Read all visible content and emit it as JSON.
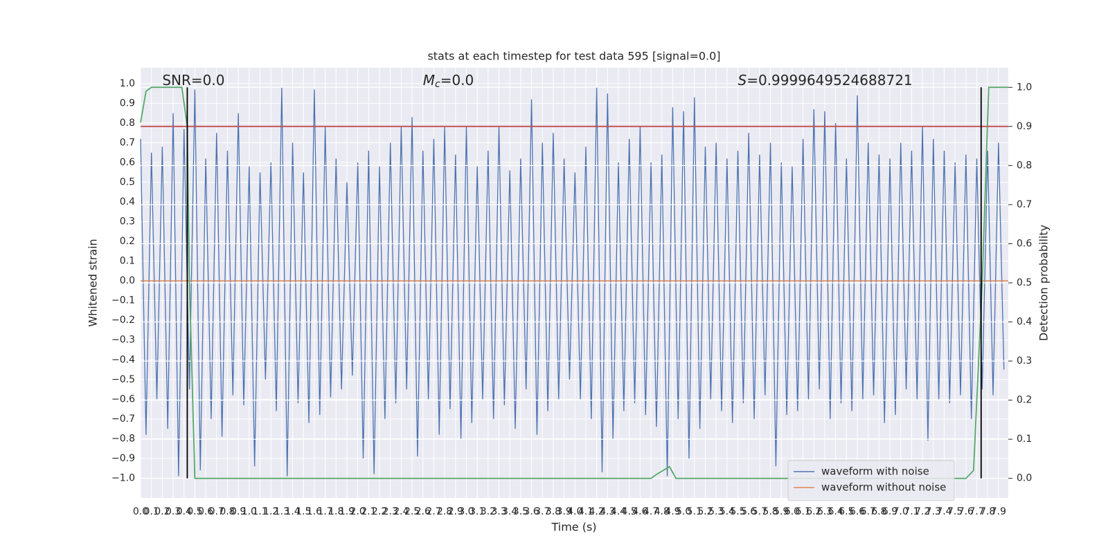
{
  "chart_data": {
    "type": "line",
    "title": "stats at each timestep for test data 595 [signal=0.0]",
    "xlabel": "Time (s)",
    "ylabel": "Whitened strain",
    "y2label": "Detection probability",
    "annotations": [
      {
        "text": "SNR=0.0",
        "x": 0.2
      },
      {
        "symbol": "M",
        "subscript": "c",
        "text": "=0.0",
        "x": 2.6
      },
      {
        "symbol": "S",
        "text": "=0.9999649524688721",
        "x": 5.5
      }
    ],
    "xlim": [
      0,
      7.99
    ],
    "ylim": [
      -1.1,
      1.08
    ],
    "y2lim": [
      -0.05,
      1.05
    ],
    "grid": true,
    "legend": "lower right",
    "xticks": [
      {
        "value": 0,
        "label": "0.0"
      },
      0.1,
      0.2,
      0.3,
      0.4,
      0.5,
      0.6,
      0.7,
      0.8,
      0.9,
      {
        "value": 1,
        "label": "1.0"
      },
      1.1,
      1.2,
      1.3,
      1.4,
      1.5,
      1.6,
      1.7,
      1.8,
      1.9,
      {
        "value": 2,
        "label": "2.0"
      },
      2.1,
      2.2,
      2.3,
      2.4,
      2.5,
      2.6,
      2.7,
      2.8,
      2.9,
      {
        "value": 3,
        "label": "3.0"
      },
      3.1,
      3.2,
      3.3,
      3.4,
      3.5,
      3.6,
      3.7,
      3.8,
      3.9,
      {
        "value": 4,
        "label": "4.0"
      },
      4.1,
      4.2,
      4.3,
      4.4,
      4.5,
      4.6,
      4.7,
      4.8,
      4.9,
      {
        "value": 5,
        "label": "5.0"
      },
      5.1,
      5.2,
      5.3,
      5.4,
      5.5,
      5.6,
      5.7,
      5.8,
      5.9,
      {
        "value": 6,
        "label": "6.0"
      },
      6.1,
      6.2,
      6.3,
      6.4,
      6.5,
      6.6,
      6.7,
      6.8,
      6.9,
      {
        "value": 7,
        "label": "7.0"
      },
      7.1,
      7.2,
      7.3,
      7.4,
      7.5,
      7.6,
      7.7,
      7.8,
      7.9
    ],
    "yticks": [
      {
        "value": -1,
        "label": "−1.0"
      },
      {
        "value": -0.9,
        "label": "−0.9"
      },
      {
        "value": -0.8,
        "label": "−0.8"
      },
      {
        "value": -0.7,
        "label": "−0.7"
      },
      {
        "value": -0.6,
        "label": "−0.6"
      },
      {
        "value": -0.5,
        "label": "−0.5"
      },
      {
        "value": -0.4,
        "label": "−0.4"
      },
      {
        "value": -0.3,
        "label": "−0.3"
      },
      {
        "value": -0.2,
        "label": "−0.2"
      },
      {
        "value": -0.1,
        "label": "−0.1"
      },
      {
        "value": 0,
        "label": "0.0"
      },
      0.1,
      0.2,
      0.3,
      0.4,
      0.5,
      0.6,
      0.7,
      0.8,
      0.9,
      {
        "value": 1,
        "label": "1.0"
      }
    ],
    "y2ticks": [
      {
        "value": 0,
        "label": "0.0"
      },
      0.1,
      0.2,
      0.3,
      0.4,
      0.5,
      0.6,
      0.7,
      0.8,
      0.9,
      {
        "value": 1,
        "label": "1.0"
      }
    ],
    "series": [
      {
        "name": "waveform with noise",
        "color": "#4c72b0",
        "x": [
          0,
          0.05,
          0.1,
          0.15,
          0.2,
          0.25,
          0.3,
          0.35,
          0.4,
          0.45,
          0.5,
          0.55,
          0.6,
          0.65,
          0.7,
          0.75,
          0.8,
          0.85,
          0.9,
          0.95,
          1,
          1.05,
          1.1,
          1.15,
          1.2,
          1.25,
          1.3,
          1.35,
          1.4,
          1.45,
          1.5,
          1.55,
          1.6,
          1.65,
          1.7,
          1.75,
          1.8,
          1.85,
          1.9,
          1.95,
          2,
          2.05,
          2.1,
          2.15,
          2.2,
          2.25,
          2.3,
          2.35,
          2.4,
          2.45,
          2.5,
          2.55,
          2.6,
          2.65,
          2.7,
          2.75,
          2.8,
          2.85,
          2.9,
          2.95,
          3,
          3.05,
          3.1,
          3.15,
          3.2,
          3.25,
          3.3,
          3.35,
          3.4,
          3.45,
          3.5,
          3.55,
          3.6,
          3.65,
          3.7,
          3.75,
          3.8,
          3.85,
          3.9,
          3.95,
          4,
          4.05,
          4.1,
          4.15,
          4.2,
          4.25,
          4.3,
          4.35,
          4.4,
          4.45,
          4.5,
          4.55,
          4.6,
          4.65,
          4.7,
          4.75,
          4.8,
          4.85,
          4.9,
          4.95,
          5,
          5.05,
          5.1,
          5.15,
          5.2,
          5.25,
          5.3,
          5.35,
          5.4,
          5.45,
          5.5,
          5.55,
          5.6,
          5.65,
          5.7,
          5.75,
          5.8,
          5.85,
          5.9,
          5.95,
          6,
          6.05,
          6.1,
          6.15,
          6.2,
          6.25,
          6.3,
          6.35,
          6.4,
          6.45,
          6.5,
          6.55,
          6.6,
          6.65,
          6.7,
          6.75,
          6.8,
          6.85,
          6.9,
          6.95,
          7,
          7.05,
          7.1,
          7.15,
          7.2,
          7.25,
          7.3,
          7.35,
          7.4,
          7.45,
          7.5,
          7.55,
          7.6,
          7.65,
          7.7,
          7.75,
          7.8,
          7.85,
          7.9,
          7.95
        ],
        "values": [
          0.72,
          -0.78,
          0.65,
          -0.6,
          0.68,
          -0.75,
          0.85,
          -0.99,
          0.77,
          -0.55,
          0.97,
          -0.96,
          0.62,
          -0.7,
          0.75,
          -0.79,
          0.66,
          -0.58,
          0.85,
          -0.63,
          0.58,
          -0.94,
          0.55,
          -0.5,
          0.6,
          -0.66,
          0.98,
          -0.99,
          0.7,
          -0.62,
          0.55,
          -0.72,
          0.97,
          -0.68,
          0.78,
          -0.59,
          0.62,
          -0.55,
          0.5,
          -0.48,
          0.6,
          -0.9,
          0.66,
          -0.98,
          0.58,
          -0.7,
          0.7,
          -0.62,
          0.78,
          -0.55,
          0.83,
          -0.89,
          0.66,
          -0.6,
          0.72,
          -0.78,
          0.78,
          -0.65,
          0.64,
          -0.8,
          0.78,
          -0.72,
          0.58,
          -0.6,
          0.66,
          -0.7,
          0.78,
          -0.63,
          0.56,
          -0.75,
          0.62,
          -0.55,
          0.92,
          -0.78,
          0.7,
          -0.66,
          0.75,
          -0.6,
          0.62,
          -0.5,
          0.55,
          -0.6,
          0.68,
          -0.7,
          0.98,
          -0.97,
          0.95,
          -0.8,
          0.6,
          -0.66,
          0.72,
          -0.62,
          0.78,
          -0.68,
          0.6,
          -0.74,
          0.64,
          -0.99,
          0.88,
          -0.7,
          0.86,
          -0.9,
          0.93,
          -0.75,
          0.68,
          -0.6,
          0.7,
          -0.66,
          0.62,
          -0.72,
          0.66,
          -0.62,
          0.75,
          -0.7,
          0.64,
          -0.58,
          0.7,
          -0.94,
          0.6,
          -0.68,
          0.58,
          -0.66,
          0.72,
          -0.6,
          0.87,
          -0.55,
          0.86,
          -0.7,
          0.8,
          -0.62,
          0.62,
          -0.66,
          0.94,
          -0.6,
          0.7,
          -0.58,
          0.64,
          -0.72,
          0.62,
          -0.68,
          0.7,
          -0.55,
          0.66,
          -0.6,
          0.78,
          -0.81,
          0.72,
          -0.6,
          0.66,
          -0.62,
          0.6,
          -0.58,
          0.64,
          -0.7,
          0.62,
          -0.55,
          0.66,
          -0.58,
          0.7,
          -0.45
        ]
      },
      {
        "name": "waveform without noise",
        "color": "#dd8452",
        "x": [
          0,
          7.99
        ],
        "values": [
          0,
          0
        ]
      }
    ],
    "probability": {
      "color": "#55a868",
      "axis": "y2",
      "x": [
        0,
        0.05,
        0.1,
        0.38,
        0.43,
        0.45,
        0.5,
        0.55,
        4.7,
        4.75,
        4.87,
        4.93,
        7.6,
        7.67,
        7.75,
        7.81,
        7.99
      ],
      "values": [
        0.91,
        0.99,
        1,
        1,
        0.9,
        0.5,
        0,
        0,
        0,
        0.01,
        0.03,
        0,
        0,
        0.02,
        0.5,
        1,
        1
      ]
    },
    "threshold": {
      "value": 0.9,
      "axis": "y2",
      "color": "#c44e52"
    },
    "markers": {
      "x": [
        0.43,
        7.74
      ],
      "ymin": 0,
      "ymax": 1,
      "axis": "y2",
      "color": "#000000"
    }
  }
}
